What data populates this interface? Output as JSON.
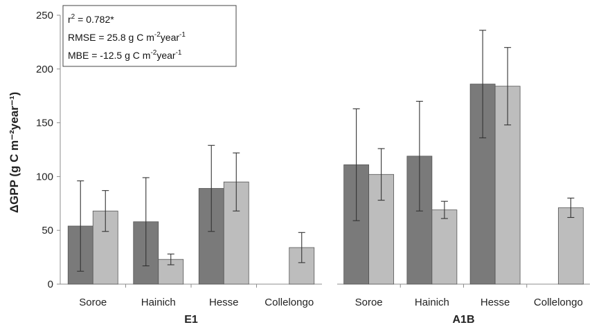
{
  "chart_data": {
    "type": "bar",
    "ylabel": "ΔGPP (g C m⁻²year⁻¹)",
    "ylim": [
      0,
      250
    ],
    "yticks": [
      0,
      50,
      100,
      150,
      200,
      250
    ],
    "grid": false,
    "colors": {
      "series_dark": "#7a7a7a",
      "series_light": "#bdbdbd",
      "error_bar": "#333333",
      "axis": "#8c8c8c"
    },
    "stats_box": {
      "lines": [
        {
          "base": "r",
          "sup": "2",
          "rest": " = 0.782*"
        },
        {
          "base": "RMSE = 25.8 g C m",
          "sup": "-2",
          "rest": "year",
          "sup2": "-1"
        },
        {
          "base": "MBE = -12.5 g C m",
          "sup": "-2",
          "rest": "year",
          "sup2": "-1"
        }
      ]
    },
    "groups": [
      {
        "name": "E1",
        "categories": [
          "Soroe",
          "Hainich",
          "Hesse",
          "Collelongo"
        ],
        "series": [
          {
            "values": [
              54,
              58,
              89,
              null
            ],
            "errors": [
              42,
              41,
              40,
              null
            ]
          },
          {
            "values": [
              68,
              23,
              95,
              34
            ],
            "errors": [
              19,
              5,
              27,
              14
            ]
          }
        ]
      },
      {
        "name": "A1B",
        "categories": [
          "Soroe",
          "Hainich",
          "Hesse",
          "Collelongo"
        ],
        "series": [
          {
            "values": [
              111,
              119,
              186,
              null
            ],
            "errors": [
              52,
              51,
              50,
              null
            ]
          },
          {
            "values": [
              102,
              69,
              184,
              71
            ],
            "errors": [
              24,
              8,
              36,
              9
            ]
          }
        ]
      }
    ]
  }
}
